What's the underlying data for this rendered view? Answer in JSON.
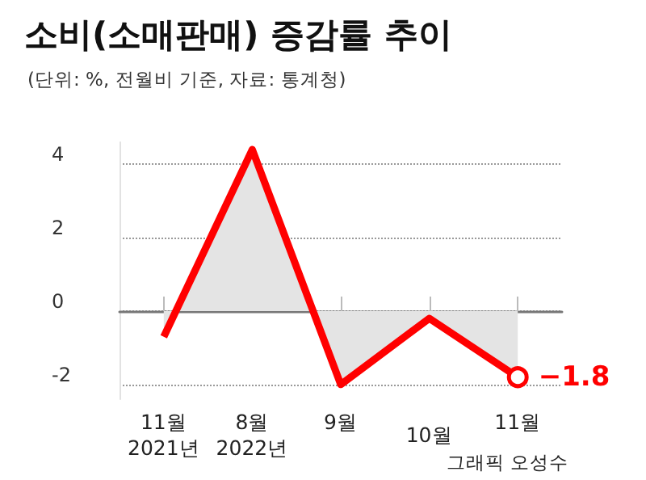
{
  "chart_data": {
    "type": "area",
    "title": "소비(소매판매) 증감률 추이",
    "subtitle": "(단위: %, 전월비 기준, 자료: 통계청)",
    "categories": [
      "11월\n2021년",
      "8월\n2022년",
      "9월",
      "10월",
      "11월"
    ],
    "series": [
      {
        "color": "#ff0000",
        "values": [
          -0.7,
          4.4,
          -2.0,
          -0.2,
          -1.8
        ],
        "value_labels": [
          null,
          null,
          null,
          null,
          "−1.8"
        ]
      }
    ],
    "ylim": [
      -2.4,
      4.6
    ],
    "yticks": [
      -2,
      0,
      2,
      4
    ],
    "grid": "y",
    "marker": "none",
    "annotations": [
      "그래픽 오성수"
    ]
  }
}
